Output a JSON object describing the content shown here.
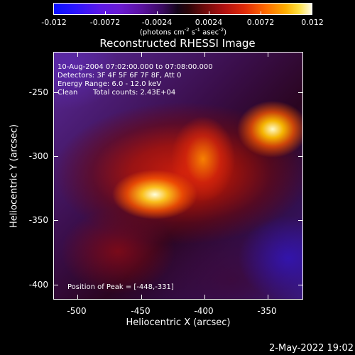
{
  "colorbar": {
    "ticks": [
      "-0.012",
      "-0.0072",
      "-0.0024",
      "0.0024",
      "0.0072",
      "0.012"
    ],
    "units_main": "(photons cm",
    "units_sup1": "-2",
    "units_mid1": " s",
    "units_sup2": "-1",
    "units_mid2": " asec",
    "units_sup3": "-2",
    "units_end": ")"
  },
  "title": "Reconstructed RHESSI Image",
  "annotations": {
    "time_range": "10-Aug-2004 07:02:00.000 to 07:08:00.000",
    "detectors": "Detectors: 3F 4F 5F 6F 7F 8F, Att 0",
    "energy": "Energy Range: 6.0 - 12.0 keV",
    "algorithm": "Clean",
    "total_counts": "Total counts: 2.43E+04",
    "peak": "Position of Peak = [-448,-331]"
  },
  "axes": {
    "xlabel": "Heliocentric X (arcsec)",
    "ylabel": "Heliocentric Y (arcsec)",
    "xticks": [
      "-500",
      "-450",
      "-400",
      "-350"
    ],
    "yticks": [
      "-250",
      "-300",
      "-350",
      "-400"
    ]
  },
  "footer": {
    "timestamp": "2-May-2022 19:02"
  }
}
